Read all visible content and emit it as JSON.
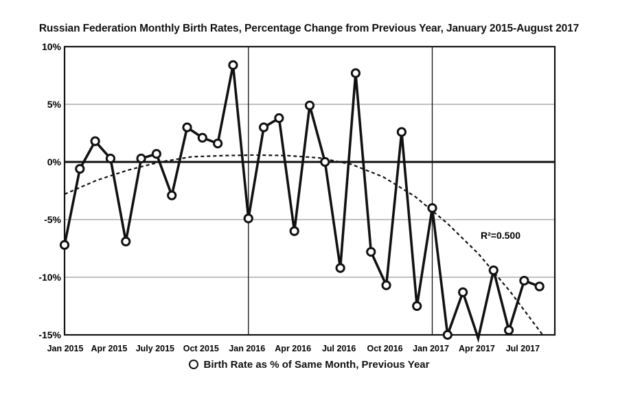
{
  "chart_data": {
    "type": "line",
    "title": "Russian Federation Monthly Birth Rates, Percentage Change from Previous Year, January 2015-August 2017",
    "xlabel": "",
    "ylabel": "",
    "ylim": [
      -15,
      10
    ],
    "y_ticks": [
      10,
      5,
      0,
      -5,
      -10,
      -15
    ],
    "y_tick_labels": [
      "10%",
      "5%",
      "0%",
      "-5%",
      "-10%",
      "-15%"
    ],
    "x_tick_labels": [
      {
        "index": 0,
        "label": "Jan 2015"
      },
      {
        "index": 3,
        "label": "Apr 2015"
      },
      {
        "index": 6,
        "label": "July 2015"
      },
      {
        "index": 9,
        "label": "Oct 2015"
      },
      {
        "index": 12,
        "label": "Jan 2016"
      },
      {
        "index": 15,
        "label": "Apr 2016"
      },
      {
        "index": 18,
        "label": "Jul 2016"
      },
      {
        "index": 21,
        "label": "Oct 2016"
      },
      {
        "index": 24,
        "label": "Jan 2017"
      },
      {
        "index": 27,
        "label": "Apr 2017"
      },
      {
        "index": 30,
        "label": "Jul 2017"
      }
    ],
    "vertical_markers": [
      12,
      24
    ],
    "series": [
      {
        "name": "Birth Rate as % of Same Month, Previous Year",
        "values": [
          -7.2,
          -0.6,
          1.8,
          0.3,
          -6.9,
          0.3,
          0.7,
          -2.9,
          3.0,
          2.1,
          1.6,
          8.4,
          -4.9,
          3.0,
          3.8,
          -6.0,
          4.9,
          0.0,
          -9.2,
          7.7,
          -7.8,
          -10.7,
          2.6,
          -12.5,
          -4.0,
          -15.0,
          -11.3,
          -15.3,
          -9.4,
          -14.6,
          -10.3,
          -10.8
        ]
      }
    ],
    "trendline": {
      "type": "polynomial",
      "values": [
        -2.8,
        -1.6,
        -0.7,
        0.0,
        0.45,
        0.55,
        0.6,
        0.55,
        0.35,
        -0.2,
        -1.3,
        -3.0,
        -5.3,
        -8.0,
        -11.3,
        -15.0
      ],
      "label": "R²=0.500"
    },
    "legend": "bottom-center"
  }
}
